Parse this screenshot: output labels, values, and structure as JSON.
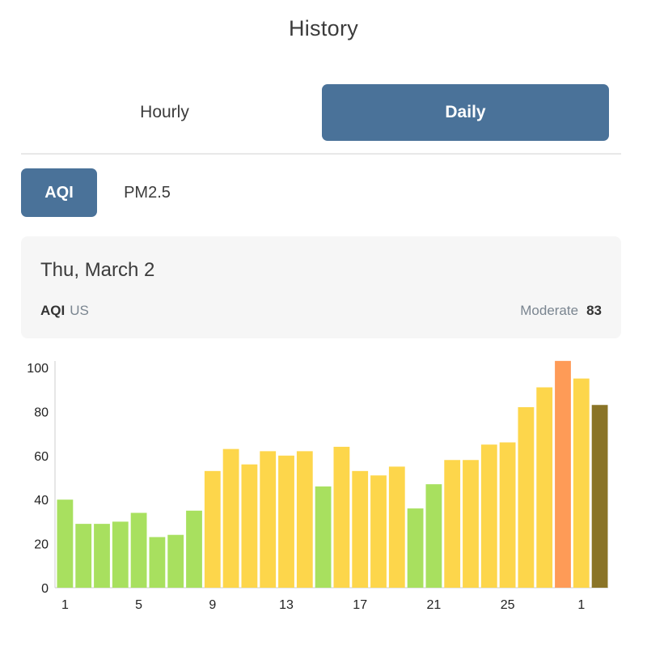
{
  "header": {
    "title": "History"
  },
  "tabs": {
    "hourly": "Hourly",
    "daily": "Daily",
    "selected": "Daily"
  },
  "metric_tabs": {
    "aqi": "AQI",
    "pm25": "PM2.5",
    "selected": "AQI"
  },
  "detail": {
    "date": "Thu, March 2",
    "metric": "AQI",
    "unit": "US",
    "status": "Moderate",
    "value": "83"
  },
  "colors": {
    "accent": "#4a7299",
    "good": "#a8e05f",
    "moderate": "#fdd64b",
    "unhealthy_sensitive": "#fe9b57",
    "selected_bar": "#8a7427"
  },
  "chart_data": {
    "type": "bar",
    "ylim": [
      0,
      100
    ],
    "yticks": [
      0,
      20,
      40,
      60,
      80,
      100
    ],
    "categories": [
      "1",
      "2",
      "3",
      "4",
      "5",
      "6",
      "7",
      "8",
      "9",
      "10",
      "11",
      "12",
      "13",
      "14",
      "15",
      "16",
      "17",
      "18",
      "19",
      "20",
      "21",
      "22",
      "23",
      "24",
      "25",
      "26",
      "27",
      "28",
      "1",
      "2"
    ],
    "xtick_labels": [
      "1",
      "5",
      "9",
      "13",
      "17",
      "21",
      "25",
      "1"
    ],
    "values": [
      40,
      29,
      29,
      30,
      34,
      23,
      24,
      35,
      53,
      63,
      56,
      62,
      60,
      62,
      46,
      64,
      53,
      51,
      55,
      36,
      47,
      58,
      58,
      65,
      66,
      82,
      91,
      103,
      95,
      83
    ],
    "selected_index": 29
  }
}
